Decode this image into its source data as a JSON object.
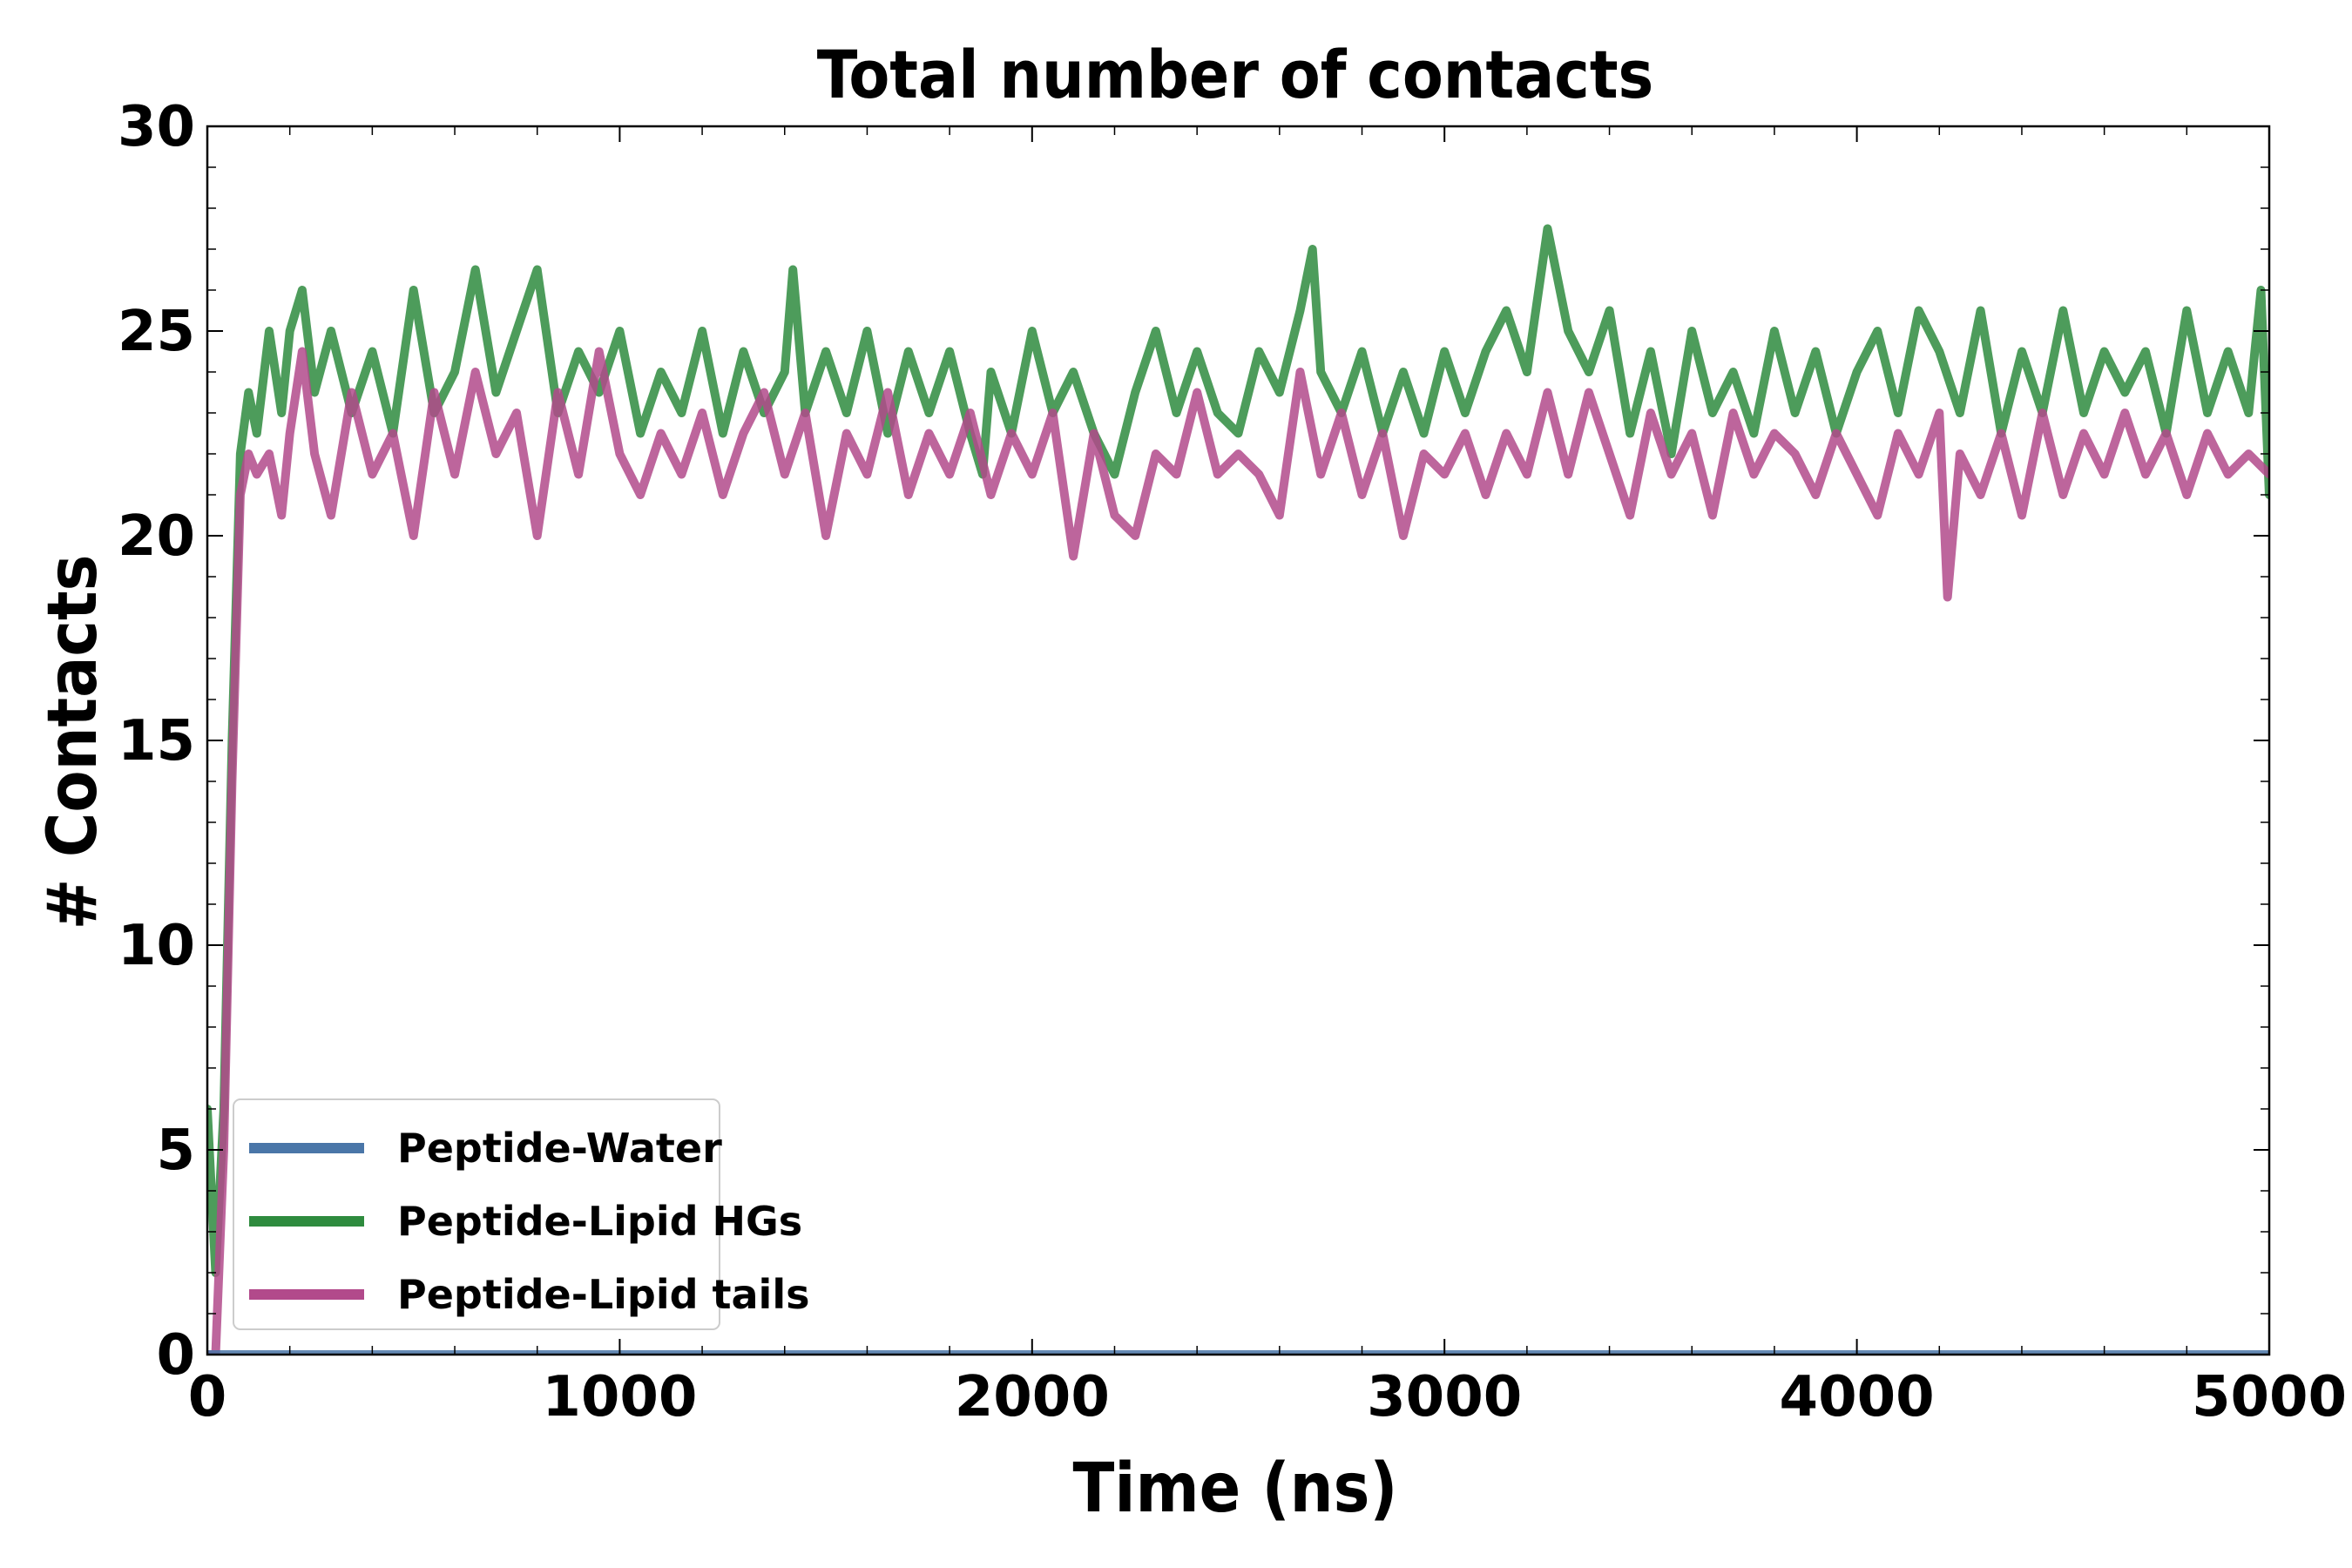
{
  "chart_data": {
    "type": "line",
    "title": "Total number of contacts",
    "xlabel": "Time (ns)",
    "ylabel": "# Contacts",
    "xlim": [
      0,
      5000
    ],
    "ylim": [
      0,
      30
    ],
    "xticks": [
      0,
      1000,
      2000,
      3000,
      4000,
      5000
    ],
    "xtick_labels": [
      "0",
      "1000",
      "2000",
      "3000",
      "4000",
      "5000"
    ],
    "yticks": [
      0,
      5,
      10,
      15,
      20,
      25,
      30
    ],
    "ytick_labels": [
      "0",
      "5",
      "10",
      "15",
      "20",
      "25",
      "30"
    ],
    "x_minor_step": 200,
    "y_minor_step": 1,
    "grid": false,
    "legend_position": "lower-left",
    "series": [
      {
        "name": "Peptide-Water",
        "color": "#4a76a8",
        "x": [
          0,
          5000
        ],
        "y": [
          0,
          0
        ]
      },
      {
        "name": "Peptide-Lipid HGs",
        "color": "#2e8b3e",
        "x": [
          0,
          20,
          40,
          60,
          80,
          100,
          120,
          150,
          180,
          200,
          230,
          260,
          300,
          350,
          400,
          450,
          500,
          550,
          600,
          650,
          700,
          750,
          800,
          850,
          900,
          950,
          1000,
          1050,
          1100,
          1150,
          1200,
          1250,
          1300,
          1350,
          1400,
          1420,
          1450,
          1500,
          1550,
          1600,
          1650,
          1700,
          1750,
          1800,
          1850,
          1880,
          1900,
          1950,
          2000,
          2050,
          2100,
          2150,
          2200,
          2250,
          2300,
          2350,
          2400,
          2450,
          2500,
          2550,
          2600,
          2650,
          2680,
          2700,
          2750,
          2800,
          2850,
          2900,
          2950,
          3000,
          3050,
          3100,
          3150,
          3200,
          3250,
          3300,
          3350,
          3400,
          3450,
          3500,
          3550,
          3600,
          3650,
          3700,
          3750,
          3800,
          3850,
          3900,
          3950,
          4000,
          4050,
          4100,
          4150,
          4200,
          4250,
          4300,
          4350,
          4400,
          4450,
          4500,
          4550,
          4600,
          4650,
          4700,
          4750,
          4800,
          4850,
          4900,
          4950,
          4980,
          5000
        ],
        "y": [
          6,
          2,
          6,
          15,
          22,
          23.5,
          22.5,
          25,
          23,
          25,
          26,
          23.5,
          25,
          23,
          24.5,
          22.5,
          26,
          23,
          24,
          26.5,
          23.5,
          25,
          26.5,
          23,
          24.5,
          23.5,
          25,
          22.5,
          24,
          23,
          25,
          22.5,
          24.5,
          23,
          24,
          26.5,
          23,
          24.5,
          23,
          25,
          22.5,
          24.5,
          23,
          24.5,
          22.5,
          21.5,
          24,
          22.5,
          25,
          23,
          24,
          22.5,
          21.5,
          23.5,
          25,
          23,
          24.5,
          23,
          22.5,
          24.5,
          23.5,
          25.5,
          27,
          24,
          23,
          24.5,
          22.5,
          24,
          22.5,
          24.5,
          23,
          24.5,
          25.5,
          24,
          27.5,
          25,
          24,
          25.5,
          22.5,
          24.5,
          22,
          25,
          23,
          24,
          22.5,
          25,
          23,
          24.5,
          22.5,
          24,
          25,
          23,
          25.5,
          24.5,
          23,
          25.5,
          22.5,
          24.5,
          23,
          25.5,
          23,
          24.5,
          23.5,
          24.5,
          22.5,
          25.5,
          23,
          24.5,
          23,
          26,
          21
        ]
      },
      {
        "name": "Peptide-Lipid tails",
        "color": "#b24a8b",
        "x": [
          0,
          20,
          40,
          60,
          80,
          100,
          120,
          150,
          180,
          200,
          230,
          260,
          300,
          350,
          400,
          450,
          500,
          550,
          600,
          650,
          700,
          750,
          800,
          850,
          900,
          950,
          1000,
          1050,
          1100,
          1150,
          1200,
          1250,
          1300,
          1350,
          1400,
          1450,
          1500,
          1550,
          1600,
          1650,
          1700,
          1750,
          1800,
          1850,
          1900,
          1950,
          2000,
          2050,
          2100,
          2150,
          2200,
          2250,
          2300,
          2350,
          2400,
          2450,
          2500,
          2550,
          2600,
          2650,
          2700,
          2750,
          2800,
          2850,
          2900,
          2950,
          3000,
          3050,
          3100,
          3150,
          3200,
          3250,
          3300,
          3350,
          3400,
          3450,
          3500,
          3550,
          3600,
          3650,
          3700,
          3750,
          3800,
          3850,
          3900,
          3950,
          4000,
          4050,
          4100,
          4150,
          4200,
          4220,
          4250,
          4300,
          4350,
          4400,
          4450,
          4500,
          4550,
          4600,
          4650,
          4700,
          4750,
          4800,
          4850,
          4900,
          4950,
          5000
        ],
        "y": [
          0,
          0,
          5,
          14,
          21,
          22,
          21.5,
          22,
          20.5,
          22.5,
          24.5,
          22,
          20.5,
          23.5,
          21.5,
          22.5,
          20,
          23.5,
          21.5,
          24,
          22,
          23,
          20,
          23.5,
          21.5,
          24.5,
          22,
          21,
          22.5,
          21.5,
          23,
          21,
          22.5,
          23.5,
          21.5,
          23,
          20,
          22.5,
          21.5,
          23.5,
          21,
          22.5,
          21.5,
          23,
          21,
          22.5,
          21.5,
          23,
          19.5,
          22.5,
          20.5,
          20,
          22,
          21.5,
          23.5,
          21.5,
          22,
          21.5,
          20.5,
          24,
          21.5,
          23,
          21,
          22.5,
          20,
          22,
          21.5,
          22.5,
          21,
          22.5,
          21.5,
          23.5,
          21.5,
          23.5,
          22,
          20.5,
          23,
          21.5,
          22.5,
          20.5,
          23,
          21.5,
          22.5,
          22,
          21,
          22.5,
          21.5,
          20.5,
          22.5,
          21.5,
          23,
          18.5,
          22,
          21,
          22.5,
          20.5,
          23,
          21,
          22.5,
          21.5,
          23,
          21.5,
          22.5,
          21,
          22.5,
          21.5,
          22,
          21.5
        ]
      }
    ]
  }
}
